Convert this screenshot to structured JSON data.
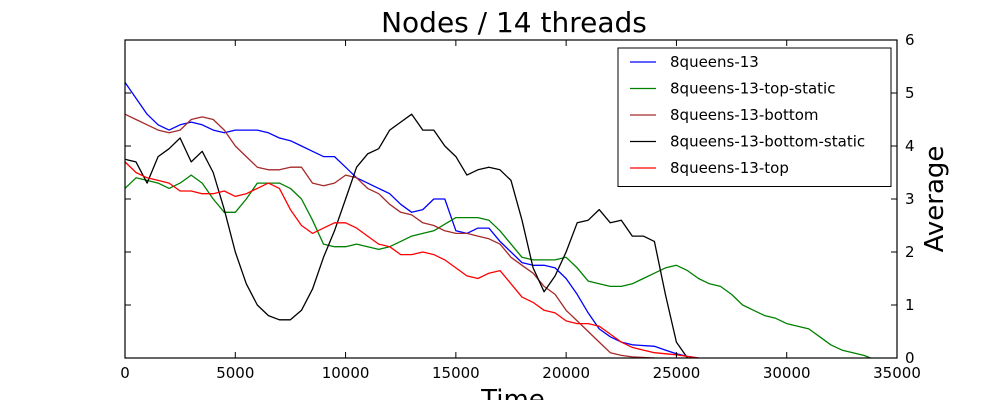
{
  "chart_data": {
    "type": "line",
    "title": "Nodes / 14 threads",
    "xlabel": "Time",
    "ylabel": "Average",
    "xlim": [
      0,
      35000
    ],
    "ylim": [
      0,
      6
    ],
    "x_ticks": [
      0,
      5000,
      10000,
      15000,
      20000,
      25000,
      30000,
      35000
    ],
    "y_ticks": [
      0,
      1,
      2,
      3,
      4,
      5,
      6
    ],
    "y_axis_side": "right",
    "grid": false,
    "legend_position": "top-right",
    "series": [
      {
        "name": "8queens-13",
        "color": "#0000ff",
        "points": [
          [
            0,
            5.2
          ],
          [
            500,
            4.9
          ],
          [
            1000,
            4.6
          ],
          [
            1500,
            4.4
          ],
          [
            2000,
            4.3
          ],
          [
            2500,
            4.4
          ],
          [
            3000,
            4.45
          ],
          [
            3500,
            4.4
          ],
          [
            4000,
            4.3
          ],
          [
            4500,
            4.25
          ],
          [
            5000,
            4.3
          ],
          [
            5500,
            4.3
          ],
          [
            6000,
            4.3
          ],
          [
            6500,
            4.25
          ],
          [
            7000,
            4.15
          ],
          [
            7500,
            4.1
          ],
          [
            8000,
            4.0
          ],
          [
            8500,
            3.9
          ],
          [
            9000,
            3.8
          ],
          [
            9500,
            3.8
          ],
          [
            10000,
            3.6
          ],
          [
            10500,
            3.4
          ],
          [
            11000,
            3.3
          ],
          [
            11500,
            3.2
          ],
          [
            12000,
            3.1
          ],
          [
            12500,
            2.9
          ],
          [
            13000,
            2.75
          ],
          [
            13500,
            2.8
          ],
          [
            14000,
            3.0
          ],
          [
            14500,
            3.0
          ],
          [
            15000,
            2.4
          ],
          [
            15500,
            2.35
          ],
          [
            16000,
            2.45
          ],
          [
            16500,
            2.45
          ],
          [
            17000,
            2.2
          ],
          [
            17500,
            2.0
          ],
          [
            18000,
            1.8
          ],
          [
            18500,
            1.75
          ],
          [
            19000,
            1.75
          ],
          [
            19500,
            1.7
          ],
          [
            20000,
            1.5
          ],
          [
            20500,
            1.2
          ],
          [
            21000,
            0.85
          ],
          [
            21500,
            0.55
          ],
          [
            22000,
            0.4
          ],
          [
            22500,
            0.3
          ],
          [
            23000,
            0.25
          ],
          [
            24000,
            0.22
          ],
          [
            24500,
            0.15
          ],
          [
            25000,
            0.08
          ],
          [
            25500,
            0.03
          ],
          [
            26000,
            0.0
          ]
        ]
      },
      {
        "name": "8queens-13-top-static",
        "color": "#008000",
        "points": [
          [
            0,
            3.2
          ],
          [
            500,
            3.4
          ],
          [
            1000,
            3.35
          ],
          [
            1500,
            3.3
          ],
          [
            2000,
            3.2
          ],
          [
            2500,
            3.3
          ],
          [
            3000,
            3.45
          ],
          [
            3500,
            3.3
          ],
          [
            4000,
            3.0
          ],
          [
            4500,
            2.75
          ],
          [
            5000,
            2.75
          ],
          [
            5500,
            3.0
          ],
          [
            6000,
            3.3
          ],
          [
            6500,
            3.3
          ],
          [
            7000,
            3.3
          ],
          [
            7500,
            3.2
          ],
          [
            8000,
            3.0
          ],
          [
            8500,
            2.6
          ],
          [
            9000,
            2.15
          ],
          [
            9500,
            2.1
          ],
          [
            10000,
            2.1
          ],
          [
            10500,
            2.15
          ],
          [
            11000,
            2.1
          ],
          [
            11500,
            2.05
          ],
          [
            12000,
            2.1
          ],
          [
            12500,
            2.2
          ],
          [
            13000,
            2.3
          ],
          [
            13500,
            2.35
          ],
          [
            14000,
            2.4
          ],
          [
            15000,
            2.65
          ],
          [
            15500,
            2.65
          ],
          [
            16000,
            2.65
          ],
          [
            16500,
            2.6
          ],
          [
            17000,
            2.4
          ],
          [
            17500,
            2.15
          ],
          [
            18000,
            1.9
          ],
          [
            18500,
            1.85
          ],
          [
            19000,
            1.85
          ],
          [
            19500,
            1.85
          ],
          [
            20000,
            1.9
          ],
          [
            20500,
            1.7
          ],
          [
            21000,
            1.45
          ],
          [
            21500,
            1.4
          ],
          [
            22000,
            1.35
          ],
          [
            22500,
            1.35
          ],
          [
            23000,
            1.4
          ],
          [
            23500,
            1.5
          ],
          [
            24000,
            1.6
          ],
          [
            24500,
            1.7
          ],
          [
            25000,
            1.75
          ],
          [
            25500,
            1.65
          ],
          [
            26000,
            1.5
          ],
          [
            26500,
            1.4
          ],
          [
            27000,
            1.35
          ],
          [
            27500,
            1.2
          ],
          [
            28000,
            1.0
          ],
          [
            28500,
            0.9
          ],
          [
            29000,
            0.8
          ],
          [
            29500,
            0.75
          ],
          [
            30000,
            0.65
          ],
          [
            31000,
            0.55
          ],
          [
            31500,
            0.4
          ],
          [
            32000,
            0.25
          ],
          [
            32500,
            0.15
          ],
          [
            33000,
            0.1
          ],
          [
            33500,
            0.05
          ],
          [
            33800,
            0.0
          ]
        ]
      },
      {
        "name": "8queens-13-bottom",
        "color": "#a52a2a",
        "points": [
          [
            0,
            4.6
          ],
          [
            500,
            4.5
          ],
          [
            1000,
            4.4
          ],
          [
            1500,
            4.3
          ],
          [
            2000,
            4.25
          ],
          [
            2500,
            4.3
          ],
          [
            3000,
            4.5
          ],
          [
            3500,
            4.55
          ],
          [
            4000,
            4.5
          ],
          [
            4500,
            4.3
          ],
          [
            5000,
            4.0
          ],
          [
            5500,
            3.8
          ],
          [
            6000,
            3.6
          ],
          [
            6500,
            3.55
          ],
          [
            7000,
            3.55
          ],
          [
            7500,
            3.6
          ],
          [
            8000,
            3.6
          ],
          [
            8500,
            3.3
          ],
          [
            9000,
            3.25
          ],
          [
            9500,
            3.3
          ],
          [
            10000,
            3.45
          ],
          [
            10500,
            3.4
          ],
          [
            11000,
            3.2
          ],
          [
            11500,
            3.1
          ],
          [
            12000,
            2.9
          ],
          [
            12500,
            2.75
          ],
          [
            13000,
            2.7
          ],
          [
            13500,
            2.55
          ],
          [
            14000,
            2.5
          ],
          [
            14500,
            2.4
          ],
          [
            15000,
            2.35
          ],
          [
            15500,
            2.35
          ],
          [
            16000,
            2.3
          ],
          [
            16500,
            2.25
          ],
          [
            17000,
            2.15
          ],
          [
            17500,
            1.9
          ],
          [
            18000,
            1.75
          ],
          [
            18500,
            1.6
          ],
          [
            19000,
            1.35
          ],
          [
            19500,
            1.2
          ],
          [
            20000,
            0.9
          ],
          [
            20500,
            0.7
          ],
          [
            21000,
            0.5
          ],
          [
            21500,
            0.3
          ],
          [
            22000,
            0.1
          ],
          [
            22500,
            0.05
          ],
          [
            23000,
            0.02
          ],
          [
            24000,
            0.0
          ]
        ]
      },
      {
        "name": "8queens-13-bottom-static",
        "color": "#000000",
        "points": [
          [
            0,
            3.75
          ],
          [
            500,
            3.7
          ],
          [
            1000,
            3.3
          ],
          [
            1500,
            3.8
          ],
          [
            2000,
            3.95
          ],
          [
            2500,
            4.15
          ],
          [
            3000,
            3.7
          ],
          [
            3500,
            3.9
          ],
          [
            4000,
            3.5
          ],
          [
            4500,
            2.8
          ],
          [
            5000,
            2.0
          ],
          [
            5500,
            1.4
          ],
          [
            6000,
            1.0
          ],
          [
            6500,
            0.8
          ],
          [
            7000,
            0.72
          ],
          [
            7500,
            0.72
          ],
          [
            8000,
            0.9
          ],
          [
            8500,
            1.3
          ],
          [
            9000,
            1.9
          ],
          [
            9500,
            2.4
          ],
          [
            10000,
            3.0
          ],
          [
            10500,
            3.6
          ],
          [
            11000,
            3.85
          ],
          [
            11500,
            3.95
          ],
          [
            12000,
            4.3
          ],
          [
            12500,
            4.45
          ],
          [
            13000,
            4.6
          ],
          [
            13500,
            4.3
          ],
          [
            14000,
            4.3
          ],
          [
            14500,
            4.0
          ],
          [
            15000,
            3.8
          ],
          [
            15500,
            3.45
          ],
          [
            16000,
            3.55
          ],
          [
            16500,
            3.6
          ],
          [
            17000,
            3.55
          ],
          [
            17500,
            3.35
          ],
          [
            18000,
            2.6
          ],
          [
            18500,
            1.7
          ],
          [
            19000,
            1.25
          ],
          [
            19500,
            1.55
          ],
          [
            20000,
            2.0
          ],
          [
            20500,
            2.55
          ],
          [
            21000,
            2.6
          ],
          [
            21500,
            2.8
          ],
          [
            22000,
            2.55
          ],
          [
            22500,
            2.6
          ],
          [
            23000,
            2.3
          ],
          [
            23500,
            2.3
          ],
          [
            24000,
            2.2
          ],
          [
            24500,
            1.2
          ],
          [
            25000,
            0.3
          ],
          [
            25500,
            0.0
          ]
        ]
      },
      {
        "name": "8queens-13-top",
        "color": "#ff0000",
        "points": [
          [
            0,
            3.7
          ],
          [
            500,
            3.5
          ],
          [
            1000,
            3.4
          ],
          [
            1500,
            3.35
          ],
          [
            2000,
            3.3
          ],
          [
            2500,
            3.15
          ],
          [
            3000,
            3.15
          ],
          [
            3500,
            3.1
          ],
          [
            4000,
            3.1
          ],
          [
            4500,
            3.15
          ],
          [
            5000,
            3.05
          ],
          [
            5500,
            3.1
          ],
          [
            6000,
            3.2
          ],
          [
            6500,
            3.3
          ],
          [
            7000,
            3.2
          ],
          [
            7500,
            2.8
          ],
          [
            8000,
            2.5
          ],
          [
            8500,
            2.35
          ],
          [
            9000,
            2.45
          ],
          [
            9500,
            2.55
          ],
          [
            10000,
            2.55
          ],
          [
            10500,
            2.45
          ],
          [
            11000,
            2.3
          ],
          [
            11500,
            2.15
          ],
          [
            12000,
            2.1
          ],
          [
            12500,
            1.95
          ],
          [
            13000,
            1.95
          ],
          [
            13500,
            2.0
          ],
          [
            14000,
            1.95
          ],
          [
            14500,
            1.85
          ],
          [
            15000,
            1.7
          ],
          [
            15500,
            1.55
          ],
          [
            16000,
            1.5
          ],
          [
            16500,
            1.6
          ],
          [
            17000,
            1.65
          ],
          [
            17500,
            1.4
          ],
          [
            18000,
            1.15
          ],
          [
            18500,
            1.05
          ],
          [
            19000,
            0.9
          ],
          [
            19500,
            0.85
          ],
          [
            20000,
            0.7
          ],
          [
            20500,
            0.65
          ],
          [
            21000,
            0.65
          ],
          [
            21500,
            0.6
          ],
          [
            22000,
            0.45
          ],
          [
            22500,
            0.3
          ],
          [
            23000,
            0.2
          ],
          [
            23500,
            0.15
          ],
          [
            24000,
            0.1
          ],
          [
            25000,
            0.06
          ],
          [
            25500,
            0.03
          ],
          [
            26000,
            0.0
          ]
        ]
      }
    ]
  }
}
